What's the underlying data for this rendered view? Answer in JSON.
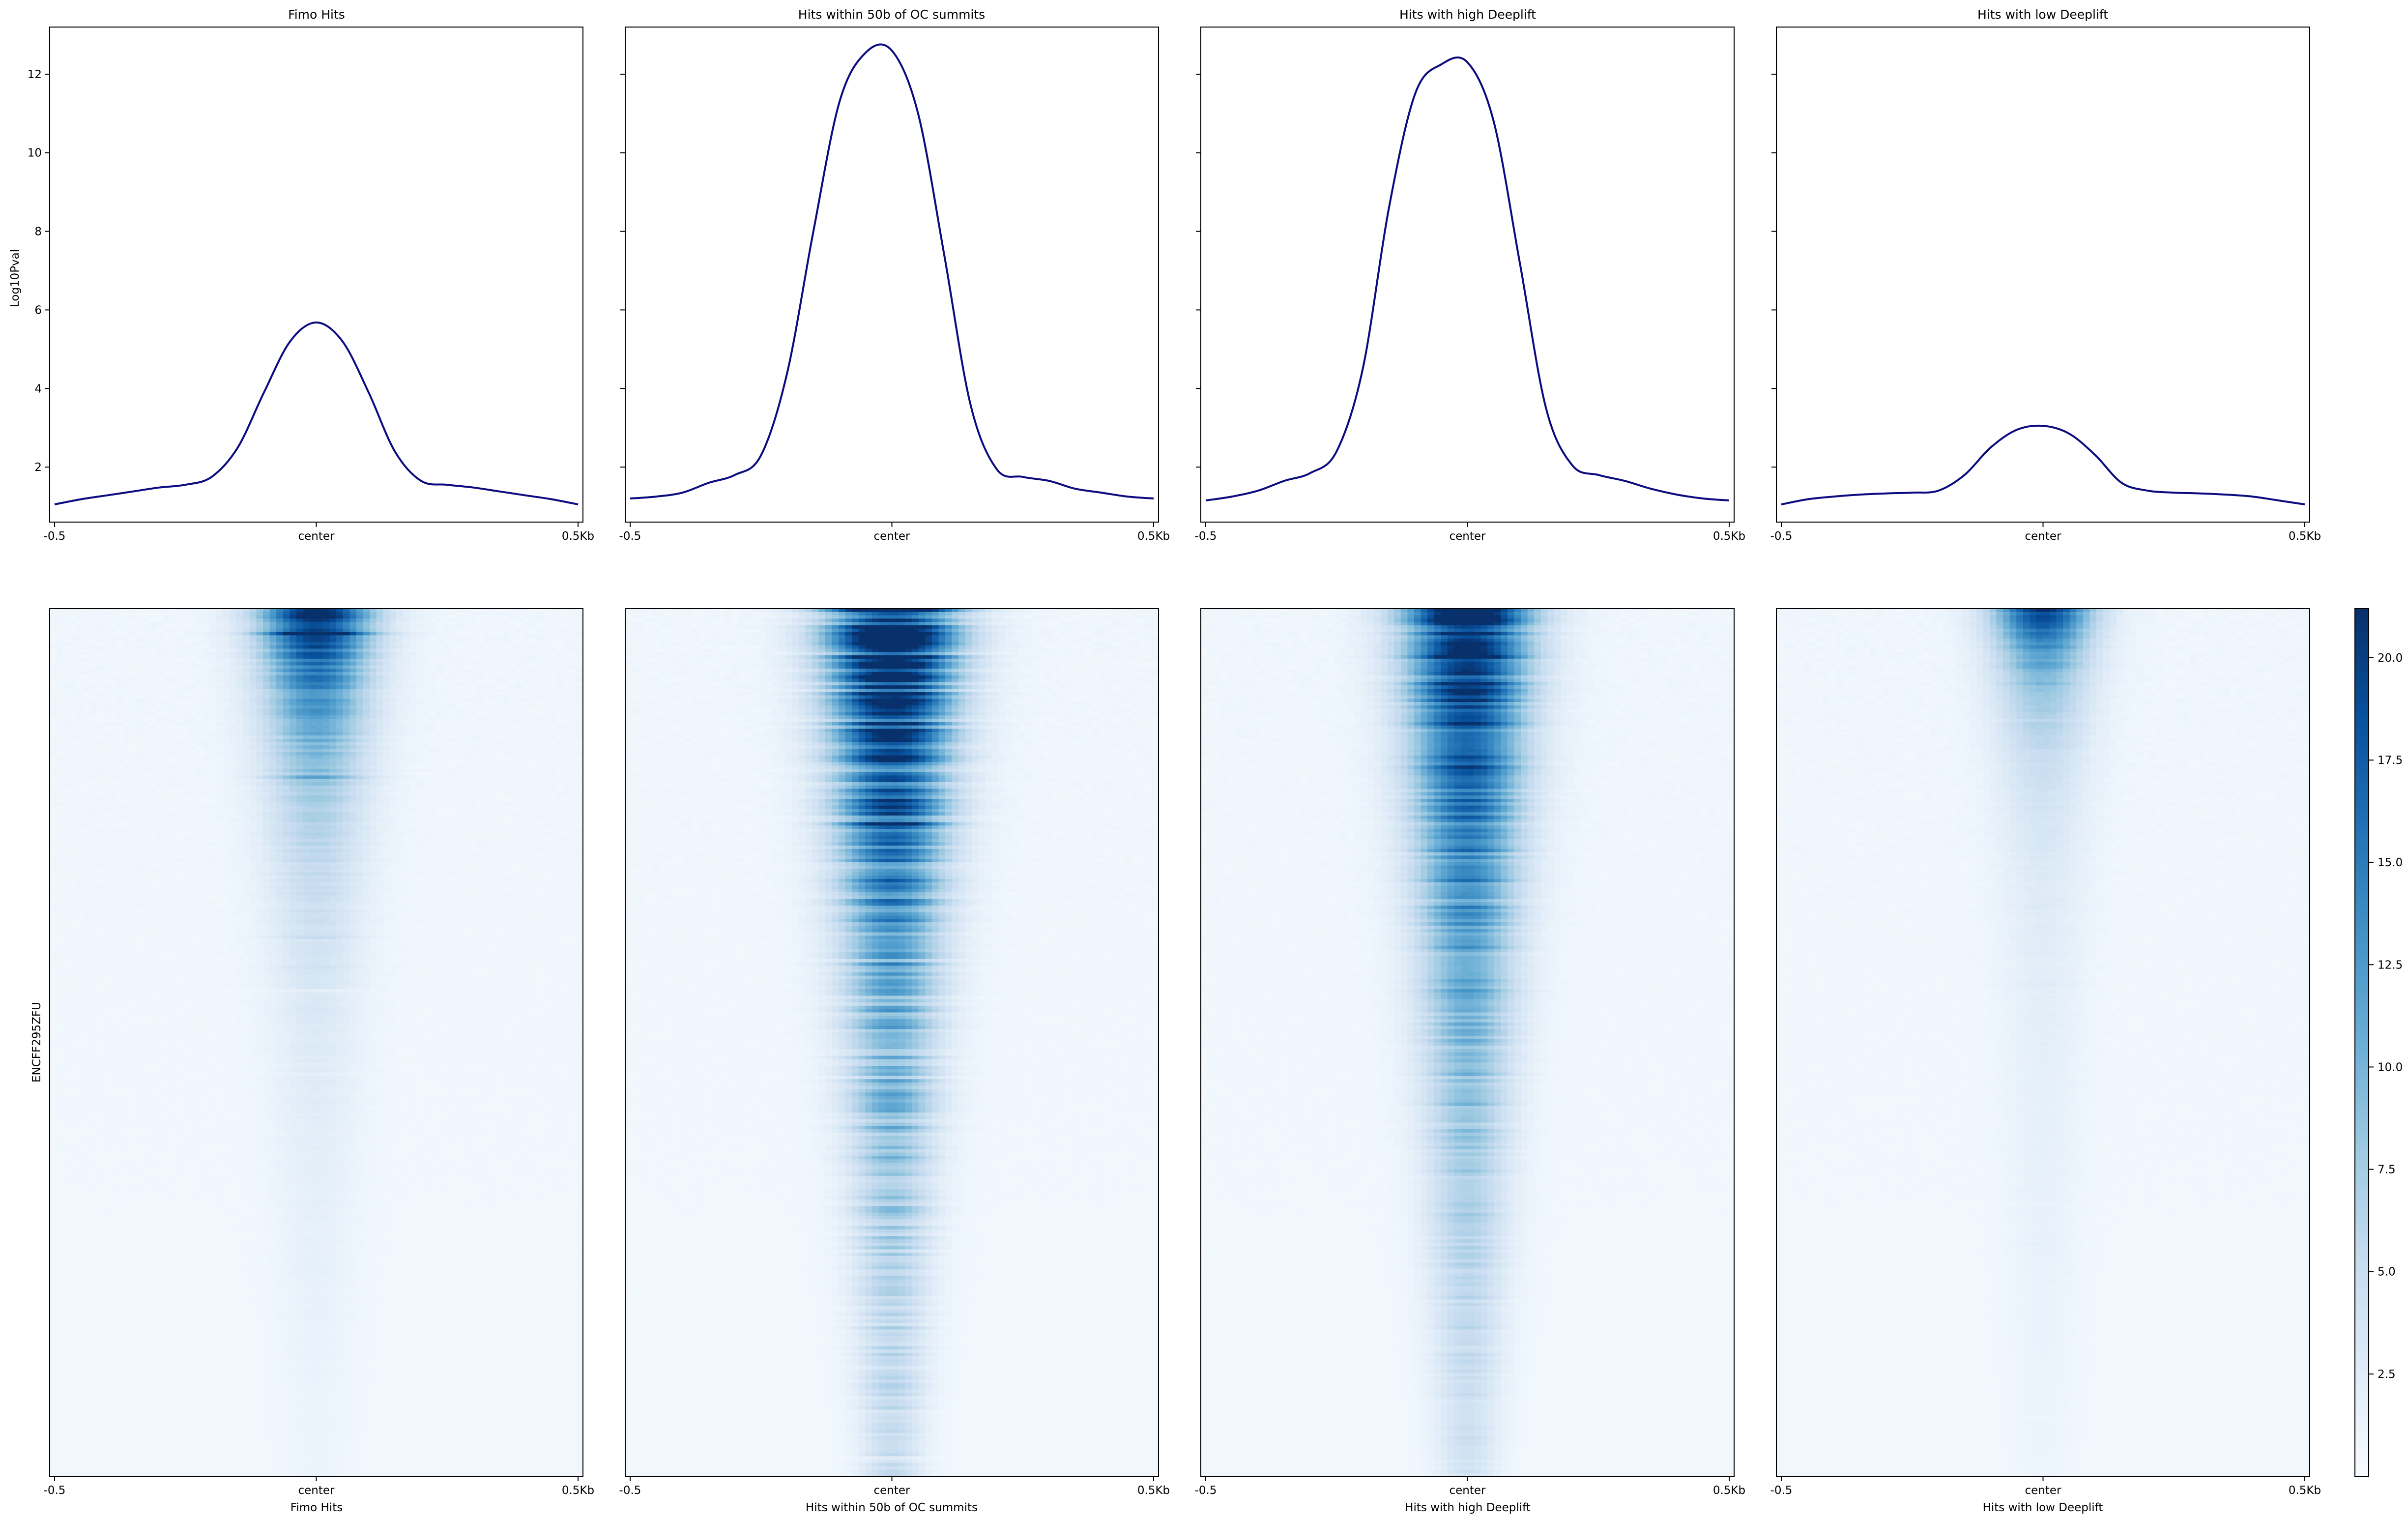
{
  "figure": {
    "ylabel_profile": "Log10Pval",
    "ylabel_heatmap": "ENCFF295ZFU"
  },
  "chart_data": {
    "type": "line",
    "kind": "deeptools-profile-heatmap",
    "x_ticks": [
      "-0.5",
      "center",
      "0.5Kb"
    ],
    "x_range_kb": [
      -0.5,
      0.5
    ],
    "profile_ylim": [
      0.6,
      13.2
    ],
    "profile_yticks": [
      "2",
      "4",
      "6",
      "8",
      "10",
      "12"
    ],
    "profile_ylabel": "Log10Pval",
    "heatmap_ylabel": "ENCFF295ZFU",
    "line_color": "#0c0c80",
    "colormap": "Blues",
    "colorbar": {
      "min": 0,
      "max": 21.2,
      "ticks": [
        "2.5",
        "5.0",
        "7.5",
        "10.0",
        "12.5",
        "15.0",
        "17.5",
        "20.0"
      ]
    },
    "panels": [
      {
        "title": "Fimo Hits",
        "xlabel": "Fimo Hits",
        "profile": {
          "x": [
            -0.5,
            -0.45,
            -0.4,
            -0.35,
            -0.3,
            -0.25,
            -0.2,
            -0.15,
            -0.1,
            -0.05,
            0,
            0.05,
            0.1,
            0.15,
            0.2,
            0.25,
            0.3,
            0.35,
            0.4,
            0.45,
            0.5
          ],
          "y": [
            1.05,
            1.18,
            1.28,
            1.38,
            1.48,
            1.55,
            1.75,
            2.5,
            3.9,
            5.2,
            5.68,
            5.2,
            3.9,
            2.4,
            1.65,
            1.55,
            1.48,
            1.38,
            1.28,
            1.18,
            1.05
          ]
        },
        "heatmap": {
          "peak": 20,
          "width_top": 0.17,
          "width_bottom": 0.1,
          "decay_rows": 0.16,
          "noise": 0.12
        }
      },
      {
        "title": "Hits within 50b of OC summits",
        "xlabel": "Hits within 50b of OC summits",
        "profile": {
          "x": [
            -0.5,
            -0.45,
            -0.4,
            -0.35,
            -0.3,
            -0.25,
            -0.2,
            -0.15,
            -0.1,
            -0.05,
            0,
            0.05,
            0.1,
            0.15,
            0.2,
            0.25,
            0.3,
            0.35,
            0.4,
            0.45,
            0.5
          ],
          "y": [
            1.2,
            1.25,
            1.35,
            1.6,
            1.8,
            2.3,
            4.4,
            8.0,
            11.3,
            12.55,
            12.6,
            11.0,
            7.4,
            3.6,
            1.95,
            1.75,
            1.65,
            1.45,
            1.35,
            1.25,
            1.2
          ]
        },
        "heatmap": {
          "peak": 21,
          "width_top": 0.2,
          "width_bottom": 0.09,
          "decay_rows": 0.55,
          "noise": 0.35
        }
      },
      {
        "title": "Hits with high Deeplift",
        "xlabel": "Hits with high Deeplift",
        "profile": {
          "x": [
            -0.5,
            -0.45,
            -0.4,
            -0.35,
            -0.3,
            -0.25,
            -0.2,
            -0.15,
            -0.1,
            -0.05,
            0,
            0.05,
            0.1,
            0.15,
            0.2,
            0.25,
            0.3,
            0.35,
            0.4,
            0.45,
            0.5
          ],
          "y": [
            1.15,
            1.25,
            1.4,
            1.65,
            1.85,
            2.4,
            4.5,
            8.6,
            11.5,
            12.25,
            12.3,
            10.8,
            7.2,
            3.5,
            2.05,
            1.8,
            1.65,
            1.45,
            1.3,
            1.2,
            1.15
          ]
        },
        "heatmap": {
          "peak": 21,
          "width_top": 0.19,
          "width_bottom": 0.09,
          "decay_rows": 0.5,
          "noise": 0.25
        }
      },
      {
        "title": "Hits with low Deeplift",
        "xlabel": "Hits with low Deeplift",
        "profile": {
          "x": [
            -0.5,
            -0.45,
            -0.4,
            -0.35,
            -0.3,
            -0.25,
            -0.2,
            -0.15,
            -0.1,
            -0.05,
            0,
            0.05,
            0.1,
            0.15,
            0.2,
            0.25,
            0.3,
            0.35,
            0.4,
            0.45,
            0.5
          ],
          "y": [
            1.05,
            1.18,
            1.25,
            1.3,
            1.33,
            1.35,
            1.4,
            1.8,
            2.5,
            2.95,
            3.05,
            2.85,
            2.3,
            1.6,
            1.4,
            1.35,
            1.33,
            1.3,
            1.25,
            1.15,
            1.05
          ]
        },
        "heatmap": {
          "peak": 17,
          "width_top": 0.15,
          "width_bottom": 0.09,
          "decay_rows": 0.09,
          "noise": 0.08
        }
      }
    ]
  }
}
